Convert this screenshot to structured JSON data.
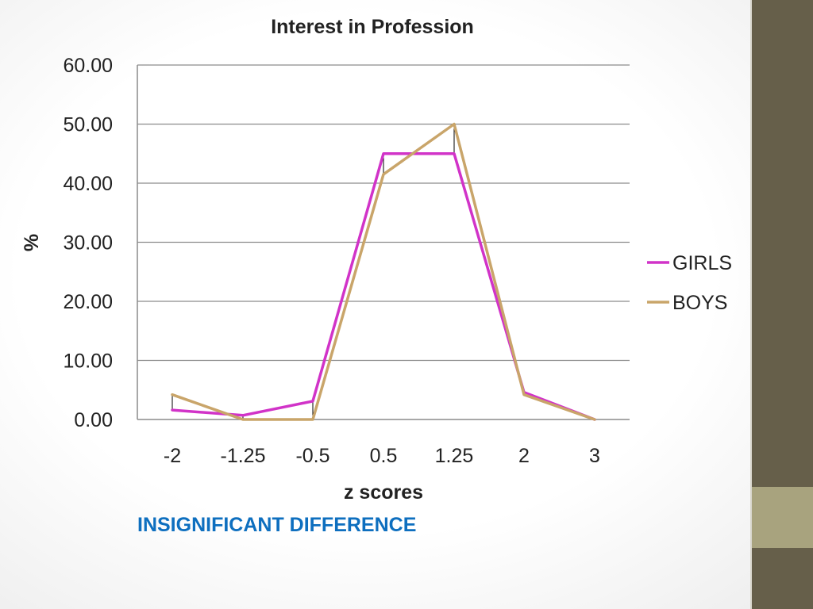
{
  "chart_data": {
    "type": "line",
    "title": "Interest in Profession",
    "xlabel": "z scores",
    "ylabel": "%",
    "categories": [
      "-2",
      "-1.25",
      "-0.5",
      "0.5",
      "1.25",
      "2",
      "3"
    ],
    "y_ticks": [
      "60.00",
      "50.00",
      "40.00",
      "30.00",
      "20.00",
      "10.00",
      "0.00"
    ],
    "ylim": [
      0,
      60
    ],
    "grid": true,
    "legend_position": "right",
    "drop_lines": true,
    "series": [
      {
        "name": "GIRLS",
        "color": "#d133c8",
        "values": [
          1.6,
          0.7,
          3.1,
          45.0,
          45.0,
          4.6,
          0.0
        ]
      },
      {
        "name": "BOYS",
        "color": "#c9a56a",
        "values": [
          4.2,
          0.0,
          0.0,
          41.5,
          50.0,
          4.2,
          0.0
        ]
      }
    ]
  },
  "caption": "INSIGNIFICANT DIFFERENCE",
  "colors": {
    "side_bar": "#665f4a",
    "side_bar_accent": "#a8a37e",
    "caption": "#0e6fbf"
  }
}
